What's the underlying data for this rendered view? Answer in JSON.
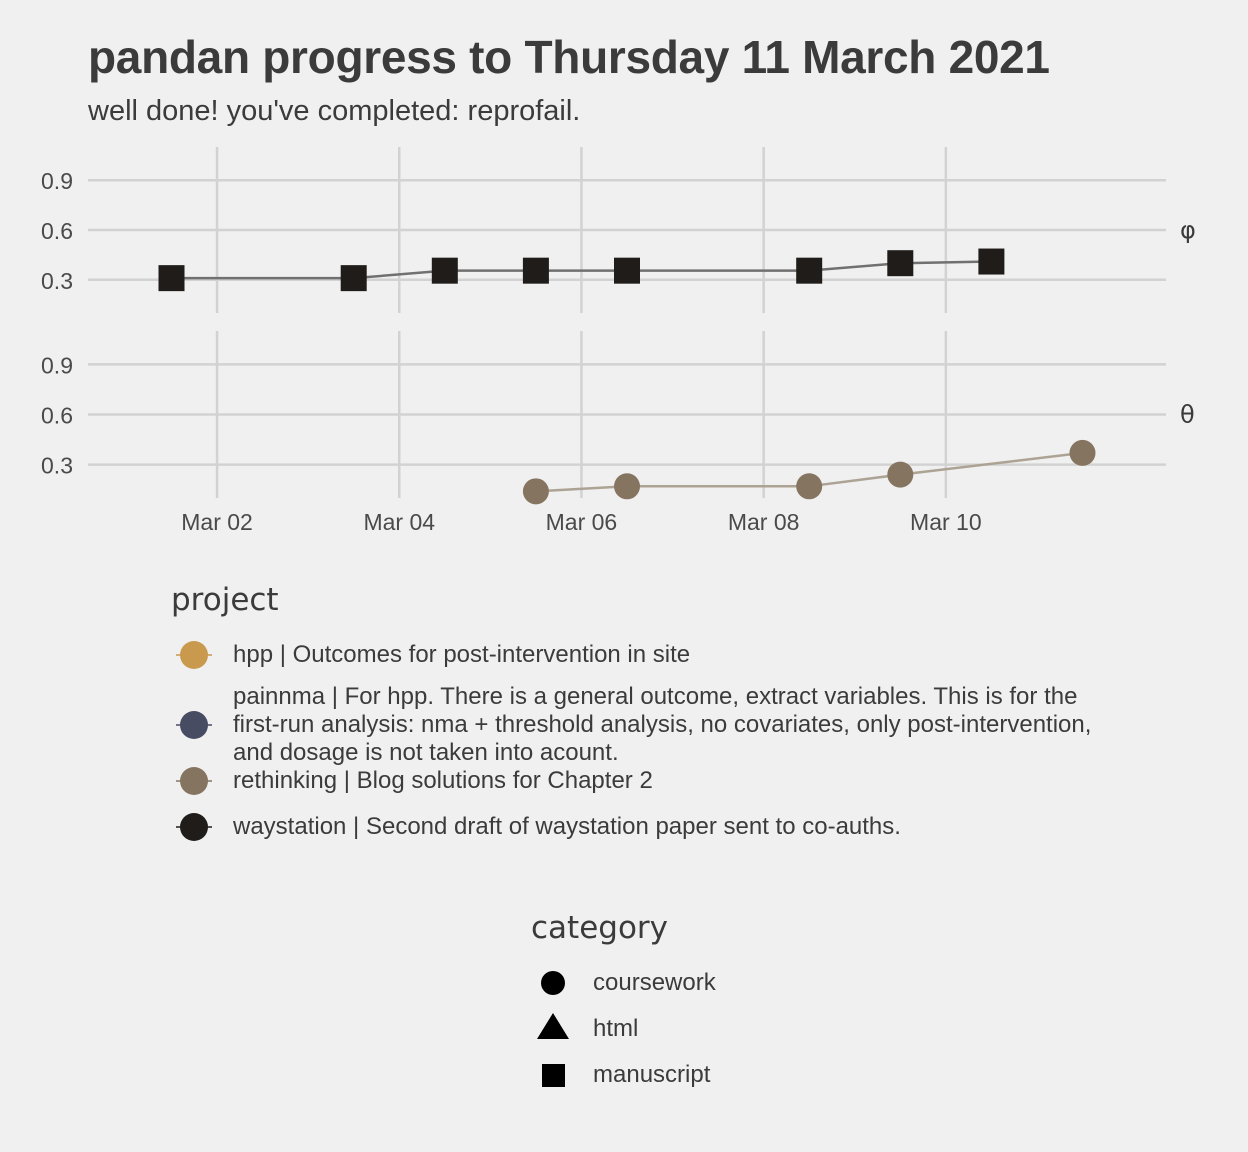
{
  "chart_data": {
    "type": "line",
    "title": "pandan progress to Thursday 11 March 2021",
    "subtitle": "well done! you've completed: reprofail.",
    "x_ticks": [
      "Mar 02",
      "Mar 04",
      "Mar 06",
      "Mar 08",
      "Mar 10"
    ],
    "xlim": [
      "2021-02-28 14:00",
      "2021-03-12 10:00"
    ],
    "grid": true,
    "panels": [
      {
        "strip": "φ",
        "y_ticks": [
          "0.3",
          "0.6",
          "0.9"
        ],
        "ylim": [
          0.1,
          1.1
        ],
        "series": [
          {
            "project": "waystation",
            "category": "manuscript",
            "points": [
              {
                "x": "2021-03-01",
                "y": 0.31
              },
              {
                "x": "2021-03-03",
                "y": 0.31
              },
              {
                "x": "2021-03-04",
                "y": 0.355
              },
              {
                "x": "2021-03-05",
                "y": 0.355
              },
              {
                "x": "2021-03-06",
                "y": 0.355
              },
              {
                "x": "2021-03-08",
                "y": 0.355
              },
              {
                "x": "2021-03-09",
                "y": 0.4
              },
              {
                "x": "2021-03-10 12:00",
                "y": 0.41
              }
            ]
          }
        ]
      },
      {
        "strip": "θ",
        "y_ticks": [
          "0.3",
          "0.6",
          "0.9"
        ],
        "ylim": [
          0.1,
          1.1
        ],
        "series": [
          {
            "project": "rethinking",
            "category": "coursework",
            "points": [
              {
                "x": "2021-03-05",
                "y": 0.14
              },
              {
                "x": "2021-03-06",
                "y": 0.17
              },
              {
                "x": "2021-03-08",
                "y": 0.17
              },
              {
                "x": "2021-03-09",
                "y": 0.24
              },
              {
                "x": "2021-03-11",
                "y": 0.37
              }
            ]
          }
        ]
      }
    ],
    "legend": {
      "project": {
        "title": "project",
        "entries": [
          {
            "label": "hpp | Outcomes for post-intervention in site",
            "color": "#c99a4e"
          },
          {
            "label": "painnma | For hpp. There is a general outcome, extract variables. This is for the first-run analysis: nma + threshold analysis, no covariates, only post-intervention, and dosage is not taken into acount.",
            "color": "#474c63"
          },
          {
            "label": "rethinking | Blog solutions for Chapter 2",
            "color": "#857560"
          },
          {
            "label": "waystation | Second draft of waystation paper sent to co-auths.",
            "color": "#201c19"
          }
        ]
      },
      "category": {
        "title": "category",
        "entries": [
          {
            "label": "coursework",
            "shape": "circle"
          },
          {
            "label": "html",
            "shape": "triangle"
          },
          {
            "label": "manuscript",
            "shape": "square"
          }
        ]
      }
    },
    "colors": {
      "background": "#f0f0f0",
      "grid": "#d2d2d2",
      "waystation_line": "#707070",
      "rethinking_line": "#ada395"
    }
  }
}
